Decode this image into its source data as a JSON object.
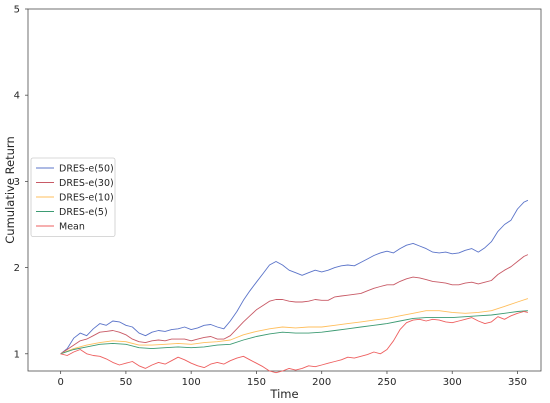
{
  "chart_data": {
    "type": "line",
    "title": "",
    "xlabel": "Time",
    "ylabel": "Cumulative Return",
    "xlim": [
      -25,
      368
    ],
    "ylim": [
      0.8,
      5.0
    ],
    "xticks": [
      "0",
      "50",
      "100",
      "150",
      "200",
      "250",
      "300",
      "350"
    ],
    "yticks": [
      "1",
      "2",
      "3",
      "4",
      "5"
    ],
    "grid": false,
    "legend_position": "center-left",
    "series": [
      {
        "name": "DRES-e(50)",
        "color": "#5b74c9",
        "points": [
          [
            0,
            1.0
          ],
          [
            5,
            1.06
          ],
          [
            10,
            1.18
          ],
          [
            15,
            1.24
          ],
          [
            20,
            1.21
          ],
          [
            25,
            1.29
          ],
          [
            30,
            1.35
          ],
          [
            35,
            1.33
          ],
          [
            40,
            1.38
          ],
          [
            45,
            1.37
          ],
          [
            50,
            1.33
          ],
          [
            55,
            1.31
          ],
          [
            60,
            1.24
          ],
          [
            65,
            1.21
          ],
          [
            70,
            1.25
          ],
          [
            75,
            1.27
          ],
          [
            80,
            1.26
          ],
          [
            85,
            1.28
          ],
          [
            90,
            1.29
          ],
          [
            95,
            1.31
          ],
          [
            100,
            1.28
          ],
          [
            105,
            1.3
          ],
          [
            110,
            1.33
          ],
          [
            115,
            1.34
          ],
          [
            120,
            1.31
          ],
          [
            125,
            1.29
          ],
          [
            130,
            1.38
          ],
          [
            135,
            1.49
          ],
          [
            140,
            1.62
          ],
          [
            145,
            1.73
          ],
          [
            150,
            1.83
          ],
          [
            155,
            1.93
          ],
          [
            160,
            2.03
          ],
          [
            165,
            2.07
          ],
          [
            170,
            2.03
          ],
          [
            175,
            1.97
          ],
          [
            180,
            1.94
          ],
          [
            185,
            1.91
          ],
          [
            190,
            1.94
          ],
          [
            195,
            1.97
          ],
          [
            200,
            1.95
          ],
          [
            205,
            1.97
          ],
          [
            210,
            2.0
          ],
          [
            215,
            2.02
          ],
          [
            220,
            2.03
          ],
          [
            225,
            2.02
          ],
          [
            230,
            2.06
          ],
          [
            235,
            2.1
          ],
          [
            240,
            2.14
          ],
          [
            245,
            2.17
          ],
          [
            250,
            2.19
          ],
          [
            255,
            2.17
          ],
          [
            260,
            2.22
          ],
          [
            265,
            2.26
          ],
          [
            270,
            2.28
          ],
          [
            275,
            2.25
          ],
          [
            280,
            2.22
          ],
          [
            285,
            2.18
          ],
          [
            290,
            2.17
          ],
          [
            295,
            2.18
          ],
          [
            300,
            2.16
          ],
          [
            305,
            2.17
          ],
          [
            310,
            2.2
          ],
          [
            315,
            2.22
          ],
          [
            320,
            2.18
          ],
          [
            325,
            2.23
          ],
          [
            330,
            2.3
          ],
          [
            335,
            2.42
          ],
          [
            340,
            2.5
          ],
          [
            345,
            2.55
          ],
          [
            350,
            2.68
          ],
          [
            355,
            2.76
          ],
          [
            358,
            2.78
          ]
        ]
      },
      {
        "name": "DRES-e(30)",
        "color": "#c85a66",
        "points": [
          [
            0,
            1.0
          ],
          [
            5,
            1.05
          ],
          [
            10,
            1.1
          ],
          [
            15,
            1.15
          ],
          [
            20,
            1.17
          ],
          [
            25,
            1.21
          ],
          [
            30,
            1.25
          ],
          [
            35,
            1.26
          ],
          [
            40,
            1.27
          ],
          [
            45,
            1.25
          ],
          [
            50,
            1.22
          ],
          [
            55,
            1.17
          ],
          [
            60,
            1.14
          ],
          [
            65,
            1.13
          ],
          [
            70,
            1.15
          ],
          [
            75,
            1.16
          ],
          [
            80,
            1.15
          ],
          [
            85,
            1.17
          ],
          [
            90,
            1.17
          ],
          [
            95,
            1.17
          ],
          [
            100,
            1.15
          ],
          [
            105,
            1.17
          ],
          [
            110,
            1.19
          ],
          [
            115,
            1.2
          ],
          [
            120,
            1.17
          ],
          [
            125,
            1.17
          ],
          [
            130,
            1.21
          ],
          [
            135,
            1.29
          ],
          [
            140,
            1.37
          ],
          [
            145,
            1.44
          ],
          [
            150,
            1.51
          ],
          [
            155,
            1.56
          ],
          [
            160,
            1.61
          ],
          [
            165,
            1.63
          ],
          [
            170,
            1.63
          ],
          [
            175,
            1.61
          ],
          [
            180,
            1.6
          ],
          [
            185,
            1.6
          ],
          [
            190,
            1.61
          ],
          [
            195,
            1.63
          ],
          [
            200,
            1.62
          ],
          [
            205,
            1.62
          ],
          [
            210,
            1.66
          ],
          [
            215,
            1.67
          ],
          [
            220,
            1.68
          ],
          [
            225,
            1.69
          ],
          [
            230,
            1.7
          ],
          [
            235,
            1.73
          ],
          [
            240,
            1.76
          ],
          [
            245,
            1.78
          ],
          [
            250,
            1.8
          ],
          [
            255,
            1.8
          ],
          [
            260,
            1.84
          ],
          [
            265,
            1.87
          ],
          [
            270,
            1.89
          ],
          [
            275,
            1.88
          ],
          [
            280,
            1.86
          ],
          [
            285,
            1.84
          ],
          [
            290,
            1.83
          ],
          [
            295,
            1.82
          ],
          [
            300,
            1.8
          ],
          [
            305,
            1.8
          ],
          [
            310,
            1.82
          ],
          [
            315,
            1.83
          ],
          [
            320,
            1.81
          ],
          [
            325,
            1.83
          ],
          [
            330,
            1.85
          ],
          [
            335,
            1.92
          ],
          [
            340,
            1.97
          ],
          [
            345,
            2.01
          ],
          [
            350,
            2.07
          ],
          [
            355,
            2.13
          ],
          [
            358,
            2.15
          ]
        ]
      },
      {
        "name": "DRES-e(10)",
        "color": "#ffbf5e",
        "points": [
          [
            0,
            1.0
          ],
          [
            10,
            1.06
          ],
          [
            20,
            1.1
          ],
          [
            30,
            1.13
          ],
          [
            40,
            1.15
          ],
          [
            50,
            1.14
          ],
          [
            60,
            1.1
          ],
          [
            70,
            1.1
          ],
          [
            80,
            1.11
          ],
          [
            90,
            1.12
          ],
          [
            100,
            1.11
          ],
          [
            110,
            1.13
          ],
          [
            120,
            1.14
          ],
          [
            130,
            1.16
          ],
          [
            140,
            1.22
          ],
          [
            150,
            1.26
          ],
          [
            160,
            1.29
          ],
          [
            170,
            1.31
          ],
          [
            180,
            1.3
          ],
          [
            190,
            1.31
          ],
          [
            200,
            1.31
          ],
          [
            210,
            1.33
          ],
          [
            220,
            1.35
          ],
          [
            230,
            1.37
          ],
          [
            240,
            1.39
          ],
          [
            250,
            1.41
          ],
          [
            260,
            1.44
          ],
          [
            270,
            1.47
          ],
          [
            280,
            1.5
          ],
          [
            290,
            1.5
          ],
          [
            300,
            1.48
          ],
          [
            310,
            1.47
          ],
          [
            320,
            1.48
          ],
          [
            330,
            1.5
          ],
          [
            340,
            1.55
          ],
          [
            350,
            1.6
          ],
          [
            358,
            1.64
          ]
        ]
      },
      {
        "name": "DRES-e(5)",
        "color": "#3d9b73",
        "points": [
          [
            0,
            1.0
          ],
          [
            10,
            1.05
          ],
          [
            20,
            1.08
          ],
          [
            30,
            1.11
          ],
          [
            40,
            1.12
          ],
          [
            50,
            1.11
          ],
          [
            60,
            1.07
          ],
          [
            70,
            1.06
          ],
          [
            80,
            1.07
          ],
          [
            90,
            1.08
          ],
          [
            100,
            1.07
          ],
          [
            110,
            1.08
          ],
          [
            120,
            1.1
          ],
          [
            130,
            1.11
          ],
          [
            140,
            1.16
          ],
          [
            150,
            1.2
          ],
          [
            160,
            1.23
          ],
          [
            170,
            1.25
          ],
          [
            180,
            1.24
          ],
          [
            190,
            1.24
          ],
          [
            200,
            1.25
          ],
          [
            210,
            1.27
          ],
          [
            220,
            1.29
          ],
          [
            230,
            1.31
          ],
          [
            240,
            1.33
          ],
          [
            250,
            1.35
          ],
          [
            260,
            1.38
          ],
          [
            270,
            1.41
          ],
          [
            280,
            1.42
          ],
          [
            290,
            1.42
          ],
          [
            300,
            1.42
          ],
          [
            310,
            1.43
          ],
          [
            320,
            1.44
          ],
          [
            330,
            1.45
          ],
          [
            340,
            1.47
          ],
          [
            350,
            1.49
          ],
          [
            358,
            1.5
          ]
        ]
      },
      {
        "name": "Mean",
        "color": "#ee5f5f",
        "points": [
          [
            0,
            1.0
          ],
          [
            5,
            0.98
          ],
          [
            10,
            1.02
          ],
          [
            15,
            1.05
          ],
          [
            20,
            1.0
          ],
          [
            25,
            0.98
          ],
          [
            30,
            0.97
          ],
          [
            35,
            0.94
          ],
          [
            40,
            0.9
          ],
          [
            45,
            0.87
          ],
          [
            50,
            0.89
          ],
          [
            55,
            0.91
          ],
          [
            60,
            0.86
          ],
          [
            65,
            0.83
          ],
          [
            70,
            0.87
          ],
          [
            75,
            0.9
          ],
          [
            80,
            0.88
          ],
          [
            85,
            0.92
          ],
          [
            90,
            0.96
          ],
          [
            95,
            0.93
          ],
          [
            100,
            0.89
          ],
          [
            105,
            0.86
          ],
          [
            110,
            0.84
          ],
          [
            115,
            0.88
          ],
          [
            120,
            0.9
          ],
          [
            125,
            0.88
          ],
          [
            130,
            0.92
          ],
          [
            135,
            0.95
          ],
          [
            140,
            0.97
          ],
          [
            145,
            0.93
          ],
          [
            150,
            0.89
          ],
          [
            155,
            0.85
          ],
          [
            160,
            0.8
          ],
          [
            165,
            0.78
          ],
          [
            170,
            0.8
          ],
          [
            175,
            0.83
          ],
          [
            180,
            0.81
          ],
          [
            185,
            0.83
          ],
          [
            190,
            0.86
          ],
          [
            195,
            0.85
          ],
          [
            200,
            0.87
          ],
          [
            205,
            0.89
          ],
          [
            210,
            0.91
          ],
          [
            215,
            0.93
          ],
          [
            220,
            0.96
          ],
          [
            225,
            0.95
          ],
          [
            230,
            0.97
          ],
          [
            235,
            0.99
          ],
          [
            240,
            1.02
          ],
          [
            245,
            1.0
          ],
          [
            250,
            1.05
          ],
          [
            255,
            1.15
          ],
          [
            260,
            1.28
          ],
          [
            265,
            1.36
          ],
          [
            270,
            1.39
          ],
          [
            275,
            1.4
          ],
          [
            280,
            1.38
          ],
          [
            285,
            1.4
          ],
          [
            290,
            1.39
          ],
          [
            295,
            1.37
          ],
          [
            300,
            1.36
          ],
          [
            305,
            1.38
          ],
          [
            310,
            1.4
          ],
          [
            315,
            1.42
          ],
          [
            320,
            1.38
          ],
          [
            325,
            1.35
          ],
          [
            330,
            1.37
          ],
          [
            335,
            1.43
          ],
          [
            340,
            1.4
          ],
          [
            345,
            1.44
          ],
          [
            350,
            1.47
          ],
          [
            355,
            1.49
          ],
          [
            358,
            1.48
          ]
        ]
      }
    ]
  }
}
